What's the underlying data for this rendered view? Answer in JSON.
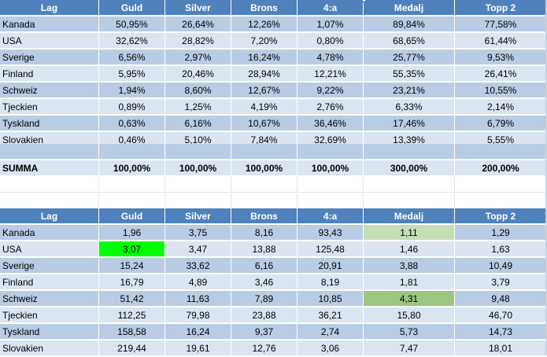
{
  "table1": {
    "headers": [
      "Lag",
      "Guld",
      "Silver",
      "Brons",
      "4:a",
      "Medalj",
      "Topp 2"
    ],
    "rows": [
      [
        "Kanada",
        "50,95%",
        "26,64%",
        "12,26%",
        "1,07%",
        "89,84%",
        "77,58%"
      ],
      [
        "USA",
        "32,62%",
        "28,82%",
        "7,20%",
        "0,80%",
        "68,65%",
        "61,44%"
      ],
      [
        "Sverige",
        "6,56%",
        "2,97%",
        "16,24%",
        "4,78%",
        "25,77%",
        "9,53%"
      ],
      [
        "Finland",
        "5,95%",
        "20,46%",
        "28,94%",
        "12,21%",
        "55,35%",
        "26,41%"
      ],
      [
        "Schweiz",
        "1,94%",
        "8,60%",
        "12,67%",
        "9,22%",
        "23,21%",
        "10,55%"
      ],
      [
        "Tjeckien",
        "0,89%",
        "1,25%",
        "4,19%",
        "2,76%",
        "6,33%",
        "2,14%"
      ],
      [
        "Tyskland",
        "0,63%",
        "6,16%",
        "10,67%",
        "36,46%",
        "17,46%",
        "6,79%"
      ],
      [
        "Slovakien",
        "0,46%",
        "5,10%",
        "7,84%",
        "32,69%",
        "13,39%",
        "5,55%"
      ]
    ],
    "summa": [
      "SUMMA",
      "100,00%",
      "100,00%",
      "100,00%",
      "100,00%",
      "300,00%",
      "200,00%"
    ]
  },
  "table2": {
    "headers": [
      "Lag",
      "Guld",
      "Silver",
      "Brons",
      "4:a",
      "Medalj",
      "Topp 2"
    ],
    "rows": [
      [
        "Kanada",
        "1,96",
        "3,75",
        "8,16",
        "93,43",
        "1,11",
        "1,29"
      ],
      [
        "USA",
        "3,07",
        "3,47",
        "13,88",
        "125,48",
        "1,46",
        "1,63"
      ],
      [
        "Sverige",
        "15,24",
        "33,62",
        "6,16",
        "20,91",
        "3,88",
        "10,49"
      ],
      [
        "Finland",
        "16,79",
        "4,89",
        "3,46",
        "8,19",
        "1,81",
        "3,79"
      ],
      [
        "Schweiz",
        "51,42",
        "11,63",
        "7,89",
        "10,85",
        "4,31",
        "9,48"
      ],
      [
        "Tjeckien",
        "112,25",
        "79,98",
        "23,88",
        "36,21",
        "15,80",
        "46,70"
      ],
      [
        "Tyskland",
        "158,58",
        "16,24",
        "9,37",
        "2,74",
        "5,73",
        "14,73"
      ],
      [
        "Slovakien",
        "219,44",
        "19,61",
        "12,76",
        "3,06",
        "7,47",
        "18,01"
      ]
    ]
  },
  "highlight_colors": {
    "bright_green": "#00ff00",
    "light_green": "#c4dfb4",
    "mid_green": "#9bc67f"
  }
}
